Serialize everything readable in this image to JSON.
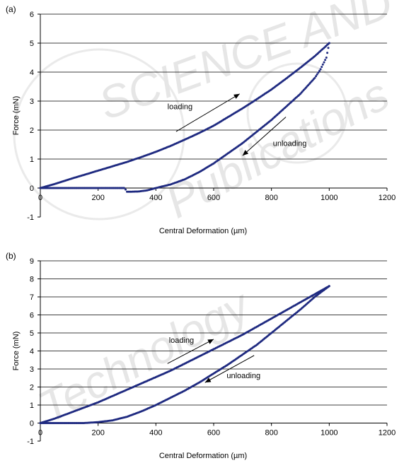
{
  "colors": {
    "series": "#1f2a80",
    "grid": "#000000",
    "watermark": "#dcdcdc"
  },
  "watermark": {
    "line1": "SCIENCE AND",
    "line2": "Technology",
    "line3": "Publications"
  },
  "chart_data": [
    {
      "type": "scatter",
      "panel_label": "(a)",
      "xlabel": "Central Deformation (µm)",
      "ylabel": "Force (mN)",
      "xlim": [
        0,
        1200
      ],
      "ylim": [
        -1,
        6
      ],
      "xticks": [
        "0",
        "200",
        "400",
        "600",
        "800",
        "1000",
        "1200"
      ],
      "yticks": [
        "-1",
        "0",
        "1",
        "2",
        "3",
        "4",
        "5",
        "6"
      ],
      "grid": "horizontal",
      "series": [
        {
          "name": "loading",
          "x": [
            0,
            50,
            100,
            150,
            200,
            250,
            300,
            350,
            400,
            450,
            500,
            550,
            600,
            650,
            700,
            750,
            800,
            850,
            900,
            950,
            1000
          ],
          "y": [
            0,
            0.14,
            0.3,
            0.45,
            0.6,
            0.75,
            0.9,
            1.07,
            1.25,
            1.45,
            1.67,
            1.9,
            2.15,
            2.45,
            2.75,
            3.07,
            3.4,
            3.77,
            4.15,
            4.55,
            5.0
          ]
        },
        {
          "name": "unloading",
          "x": [
            1000,
            990,
            970,
            950,
            900,
            850,
            800,
            750,
            700,
            650,
            600,
            550,
            500,
            450,
            420,
            400,
            370,
            340,
            300,
            295,
            290,
            280,
            250,
            200,
            150,
            100,
            50,
            0
          ],
          "y": [
            5.0,
            4.5,
            4.1,
            3.8,
            3.25,
            2.8,
            2.35,
            1.95,
            1.55,
            1.2,
            0.85,
            0.55,
            0.3,
            0.12,
            0.05,
            0.0,
            -0.08,
            -0.12,
            -0.13,
            -0.05,
            0.0,
            0.0,
            0.0,
            0.0,
            0.0,
            0.0,
            0.0,
            0.0
          ]
        }
      ],
      "annotations": [
        {
          "text": "loading",
          "x": 440,
          "y": 2.72,
          "arrow": [
            [
              470,
              1.95
            ],
            [
              690,
              3.25
            ]
          ]
        },
        {
          "text": "unloading",
          "x": 805,
          "y": 1.45,
          "arrow": [
            [
              850,
              2.45
            ],
            [
              700,
              1.12
            ]
          ]
        }
      ]
    },
    {
      "type": "scatter",
      "panel_label": "(b)",
      "xlabel": "Central Deformation (µm)",
      "ylabel": "Force (mN)",
      "xlim": [
        0,
        1200
      ],
      "ylim": [
        -1,
        9
      ],
      "xticks": [
        "0",
        "200",
        "400",
        "600",
        "800",
        "1000",
        "1200"
      ],
      "yticks": [
        "-1",
        "0",
        "1",
        "2",
        "3",
        "4",
        "5",
        "6",
        "7",
        "8",
        "9"
      ],
      "grid": "horizontal",
      "series": [
        {
          "name": "loading",
          "x": [
            0,
            50,
            100,
            150,
            200,
            250,
            300,
            350,
            400,
            450,
            500,
            550,
            600,
            650,
            700,
            750,
            800,
            850,
            900,
            950,
            1000
          ],
          "y": [
            0,
            0.25,
            0.55,
            0.85,
            1.15,
            1.5,
            1.85,
            2.2,
            2.55,
            2.9,
            3.3,
            3.7,
            4.1,
            4.5,
            4.9,
            5.35,
            5.8,
            6.25,
            6.7,
            7.15,
            7.6
          ]
        },
        {
          "name": "unloading",
          "x": [
            1000,
            950,
            900,
            850,
            800,
            750,
            700,
            650,
            600,
            550,
            500,
            450,
            400,
            350,
            300,
            250,
            200,
            150,
            100,
            50,
            0
          ],
          "y": [
            7.6,
            7.0,
            6.3,
            5.65,
            5.0,
            4.35,
            3.8,
            3.25,
            2.75,
            2.25,
            1.8,
            1.4,
            1.0,
            0.65,
            0.35,
            0.15,
            0.05,
            0.0,
            0.0,
            0.0,
            0.0
          ]
        }
      ],
      "annotations": [
        {
          "text": "loading",
          "x": 445,
          "y": 4.45,
          "arrow": [
            [
              440,
              3.3
            ],
            [
              600,
              4.65
            ]
          ]
        },
        {
          "text": "unloading",
          "x": 645,
          "y": 2.5,
          "arrow": [
            [
              740,
              3.75
            ],
            [
              570,
              2.25
            ]
          ]
        }
      ]
    }
  ]
}
